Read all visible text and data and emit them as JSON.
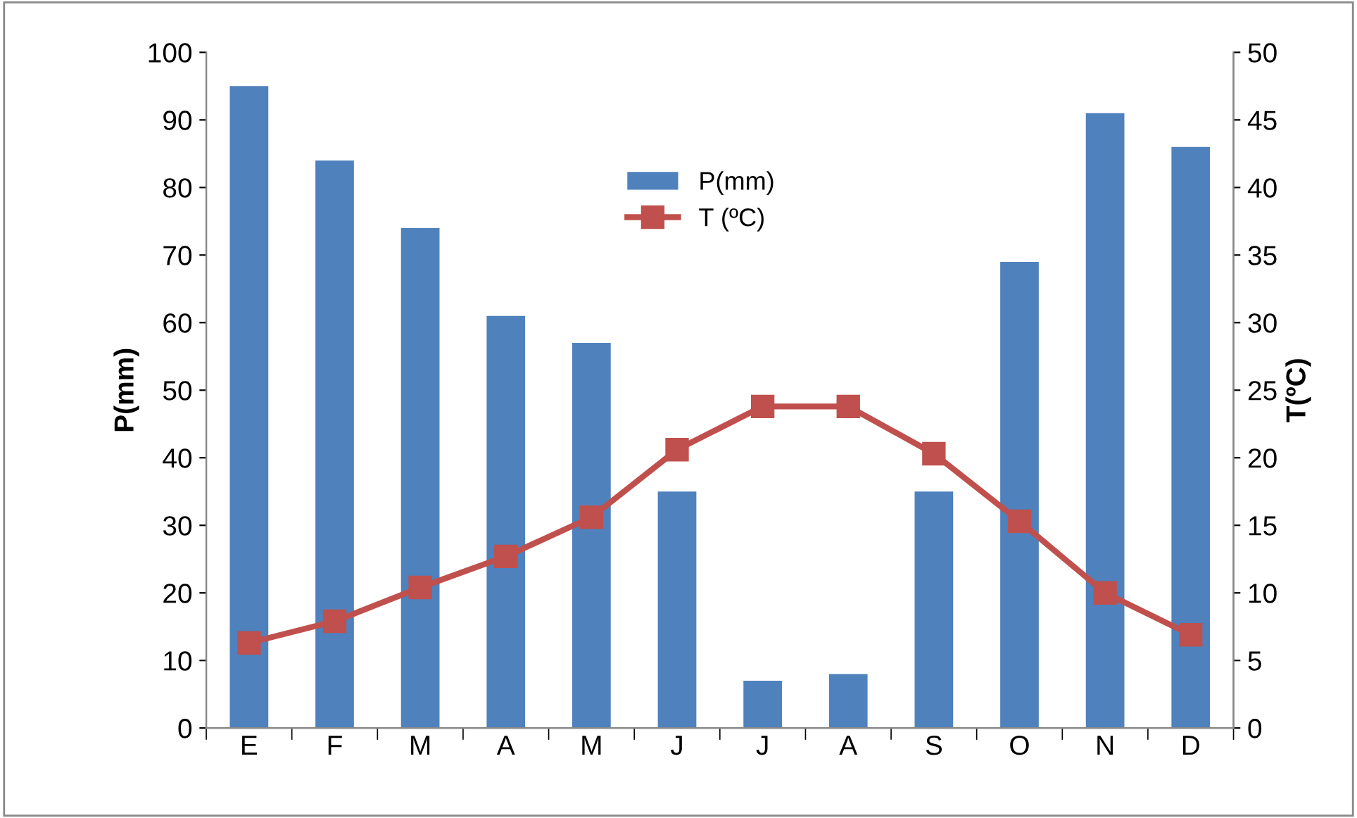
{
  "chart_data": {
    "type": "bar",
    "categories": [
      "E",
      "F",
      "M",
      "A",
      "M",
      "J",
      "J",
      "A",
      "S",
      "O",
      "N",
      "D"
    ],
    "series": [
      {
        "name": "P(mm)",
        "color": "#4f81bd",
        "values": [
          95,
          84,
          74,
          61,
          57,
          35,
          7,
          8,
          35,
          69,
          91,
          86
        ]
      },
      {
        "name": "T (ºC)",
        "type": "line",
        "axis": "y2",
        "color": "#c0504d",
        "marker": "square",
        "values": [
          6.3,
          7.9,
          10.4,
          12.7,
          15.6,
          20.6,
          23.8,
          23.8,
          20.3,
          15.3,
          10,
          6.9
        ]
      }
    ],
    "ylabel": "P(mm)",
    "y2label": "T(ºC)",
    "ylim": [
      0,
      100
    ],
    "yticks": [
      0,
      10,
      20,
      30,
      40,
      50,
      60,
      70,
      80,
      90,
      100
    ],
    "y2lim": [
      0,
      50
    ],
    "y2ticks": [
      0,
      5,
      10,
      15,
      20,
      25,
      30,
      35,
      40,
      45,
      50
    ],
    "grid": false,
    "legend": "top"
  }
}
